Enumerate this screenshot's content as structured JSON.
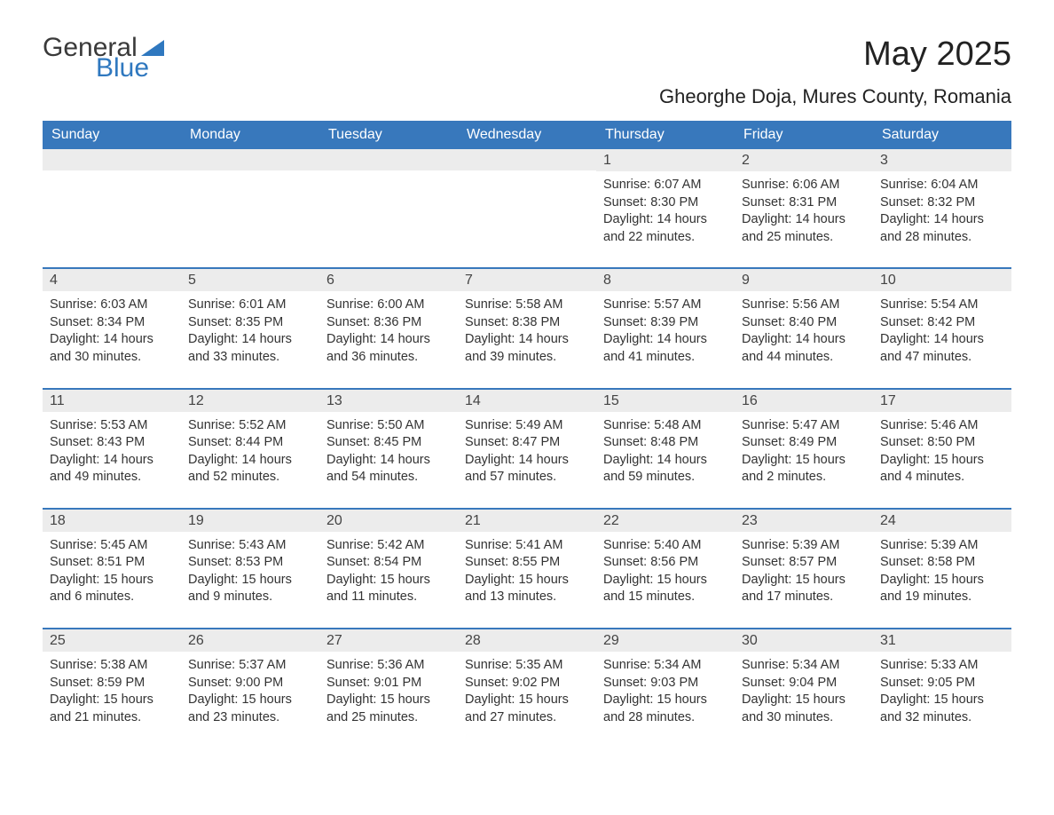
{
  "brand": {
    "general": "General",
    "blue": "Blue"
  },
  "title": "May 2025",
  "subtitle": "Gheorghe Doja, Mures County, Romania",
  "colors": {
    "header_bg": "#3878bc",
    "header_text": "#ffffff",
    "date_band_bg": "#ececec",
    "week_border": "#3878bc",
    "body_text": "#333333",
    "brand_blue": "#2f78bf"
  },
  "dow": [
    "Sunday",
    "Monday",
    "Tuesday",
    "Wednesday",
    "Thursday",
    "Friday",
    "Saturday"
  ],
  "labels": {
    "sunrise": "Sunrise:",
    "sunset": "Sunset:",
    "daylight": "Daylight:"
  },
  "weeks": [
    [
      null,
      null,
      null,
      null,
      {
        "d": "1",
        "sr": "6:07 AM",
        "ss": "8:30 PM",
        "dl": "14 hours and 22 minutes."
      },
      {
        "d": "2",
        "sr": "6:06 AM",
        "ss": "8:31 PM",
        "dl": "14 hours and 25 minutes."
      },
      {
        "d": "3",
        "sr": "6:04 AM",
        "ss": "8:32 PM",
        "dl": "14 hours and 28 minutes."
      }
    ],
    [
      {
        "d": "4",
        "sr": "6:03 AM",
        "ss": "8:34 PM",
        "dl": "14 hours and 30 minutes."
      },
      {
        "d": "5",
        "sr": "6:01 AM",
        "ss": "8:35 PM",
        "dl": "14 hours and 33 minutes."
      },
      {
        "d": "6",
        "sr": "6:00 AM",
        "ss": "8:36 PM",
        "dl": "14 hours and 36 minutes."
      },
      {
        "d": "7",
        "sr": "5:58 AM",
        "ss": "8:38 PM",
        "dl": "14 hours and 39 minutes."
      },
      {
        "d": "8",
        "sr": "5:57 AM",
        "ss": "8:39 PM",
        "dl": "14 hours and 41 minutes."
      },
      {
        "d": "9",
        "sr": "5:56 AM",
        "ss": "8:40 PM",
        "dl": "14 hours and 44 minutes."
      },
      {
        "d": "10",
        "sr": "5:54 AM",
        "ss": "8:42 PM",
        "dl": "14 hours and 47 minutes."
      }
    ],
    [
      {
        "d": "11",
        "sr": "5:53 AM",
        "ss": "8:43 PM",
        "dl": "14 hours and 49 minutes."
      },
      {
        "d": "12",
        "sr": "5:52 AM",
        "ss": "8:44 PM",
        "dl": "14 hours and 52 minutes."
      },
      {
        "d": "13",
        "sr": "5:50 AM",
        "ss": "8:45 PM",
        "dl": "14 hours and 54 minutes."
      },
      {
        "d": "14",
        "sr": "5:49 AM",
        "ss": "8:47 PM",
        "dl": "14 hours and 57 minutes."
      },
      {
        "d": "15",
        "sr": "5:48 AM",
        "ss": "8:48 PM",
        "dl": "14 hours and 59 minutes."
      },
      {
        "d": "16",
        "sr": "5:47 AM",
        "ss": "8:49 PM",
        "dl": "15 hours and 2 minutes."
      },
      {
        "d": "17",
        "sr": "5:46 AM",
        "ss": "8:50 PM",
        "dl": "15 hours and 4 minutes."
      }
    ],
    [
      {
        "d": "18",
        "sr": "5:45 AM",
        "ss": "8:51 PM",
        "dl": "15 hours and 6 minutes."
      },
      {
        "d": "19",
        "sr": "5:43 AM",
        "ss": "8:53 PM",
        "dl": "15 hours and 9 minutes."
      },
      {
        "d": "20",
        "sr": "5:42 AM",
        "ss": "8:54 PM",
        "dl": "15 hours and 11 minutes."
      },
      {
        "d": "21",
        "sr": "5:41 AM",
        "ss": "8:55 PM",
        "dl": "15 hours and 13 minutes."
      },
      {
        "d": "22",
        "sr": "5:40 AM",
        "ss": "8:56 PM",
        "dl": "15 hours and 15 minutes."
      },
      {
        "d": "23",
        "sr": "5:39 AM",
        "ss": "8:57 PM",
        "dl": "15 hours and 17 minutes."
      },
      {
        "d": "24",
        "sr": "5:39 AM",
        "ss": "8:58 PM",
        "dl": "15 hours and 19 minutes."
      }
    ],
    [
      {
        "d": "25",
        "sr": "5:38 AM",
        "ss": "8:59 PM",
        "dl": "15 hours and 21 minutes."
      },
      {
        "d": "26",
        "sr": "5:37 AM",
        "ss": "9:00 PM",
        "dl": "15 hours and 23 minutes."
      },
      {
        "d": "27",
        "sr": "5:36 AM",
        "ss": "9:01 PM",
        "dl": "15 hours and 25 minutes."
      },
      {
        "d": "28",
        "sr": "5:35 AM",
        "ss": "9:02 PM",
        "dl": "15 hours and 27 minutes."
      },
      {
        "d": "29",
        "sr": "5:34 AM",
        "ss": "9:03 PM",
        "dl": "15 hours and 28 minutes."
      },
      {
        "d": "30",
        "sr": "5:34 AM",
        "ss": "9:04 PM",
        "dl": "15 hours and 30 minutes."
      },
      {
        "d": "31",
        "sr": "5:33 AM",
        "ss": "9:05 PM",
        "dl": "15 hours and 32 minutes."
      }
    ]
  ]
}
